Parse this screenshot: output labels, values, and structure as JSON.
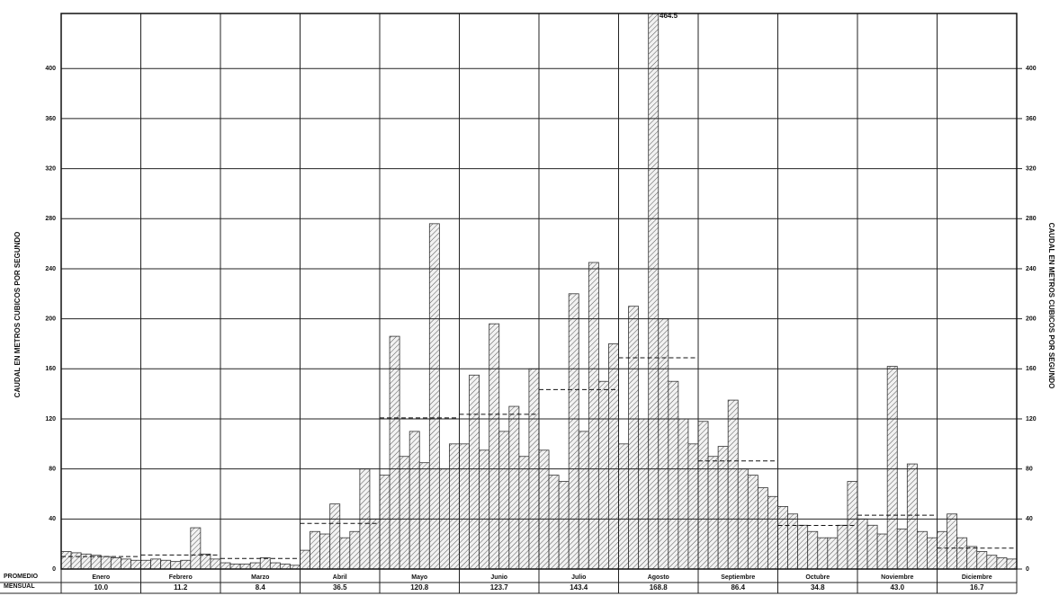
{
  "chart_data": {
    "type": "hydrograph",
    "y_label": "CAUDAL EN METROS CUBICOS POR SEGUNDO",
    "y2_label": "CAUDAL EN METROS CUBICOS POR SEGUNDO",
    "annotation": "464.5",
    "table_label": [
      "PROMEDIO",
      "MENSUAL"
    ],
    "categories": [
      "Enero",
      "Febrero",
      "Marzo",
      "Abril",
      "Mayo",
      "Junio",
      "Julio",
      "Agosto",
      "Septiembre",
      "Octubre",
      "Noviembre",
      "Diciembre"
    ],
    "monthly_mean": [
      10.0,
      11.2,
      8.4,
      36.5,
      120.8,
      123.7,
      143.4,
      168.8,
      86.4,
      34.8,
      43.0,
      16.7
    ],
    "value_labels": [
      "10.0",
      "11.2",
      "8.4",
      "36.5",
      "120.8",
      "123.7",
      "143.4",
      "168.8",
      "86.4",
      "34.8",
      "43.0",
      "16.7"
    ],
    "daily_flow": [
      [
        14,
        13,
        12,
        11,
        10,
        9,
        8,
        7
      ],
      [
        7,
        8,
        7,
        6,
        7,
        33,
        12,
        8
      ],
      [
        5,
        4,
        4,
        5,
        9,
        5,
        4,
        3
      ],
      [
        15,
        30,
        28,
        52,
        25,
        30,
        80,
        40
      ],
      [
        75,
        186,
        90,
        110,
        85,
        276,
        80,
        100
      ],
      [
        100,
        155,
        95,
        196,
        110,
        130,
        90,
        160
      ],
      [
        95,
        75,
        70,
        220,
        110,
        245,
        150,
        180
      ],
      [
        100,
        210,
        120,
        464.5,
        200,
        150,
        120,
        100
      ],
      [
        118,
        90,
        98,
        135,
        80,
        75,
        65,
        58
      ],
      [
        50,
        44,
        35,
        30,
        25,
        25,
        35,
        70
      ],
      [
        40,
        35,
        28,
        162,
        32,
        84,
        30,
        25
      ],
      [
        30,
        44,
        25,
        18,
        14,
        11,
        9,
        8
      ]
    ],
    "color": "#333333",
    "ylim": [
      0,
      444
    ],
    "yticks": [
      0,
      40,
      80,
      120,
      160,
      200,
      240,
      280,
      320,
      360,
      400
    ],
    "y2lim": [
      0,
      444
    ],
    "y2ticks": [
      0,
      40,
      80,
      120,
      160,
      200,
      240,
      280,
      320,
      360,
      400
    ],
    "grid": true
  }
}
